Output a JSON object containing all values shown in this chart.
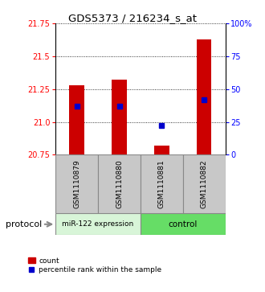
{
  "title": "GDS5373 / 216234_s_at",
  "samples": [
    "GSM1110879",
    "GSM1110880",
    "GSM1110881",
    "GSM1110882"
  ],
  "red_values": [
    21.28,
    21.32,
    20.82,
    21.63
  ],
  "blue_values": [
    21.12,
    21.12,
    20.97,
    21.17
  ],
  "red_base": 20.75,
  "ylim_left": [
    20.75,
    21.75
  ],
  "ylim_right": [
    0,
    100
  ],
  "yticks_left": [
    20.75,
    21.0,
    21.25,
    21.5,
    21.75
  ],
  "yticks_right": [
    0,
    25,
    50,
    75,
    100
  ],
  "ytick_labels_right": [
    "0",
    "25",
    "50",
    "75",
    "100%"
  ],
  "bar_width": 0.35,
  "red_color": "#cc0000",
  "blue_color": "#0000cc",
  "box_color": "#c8c8c8",
  "group1_color": "#d8f5d8",
  "group2_color": "#66dd66",
  "legend_count": "count",
  "legend_percentile": "percentile rank within the sample",
  "protocol_label": "protocol"
}
